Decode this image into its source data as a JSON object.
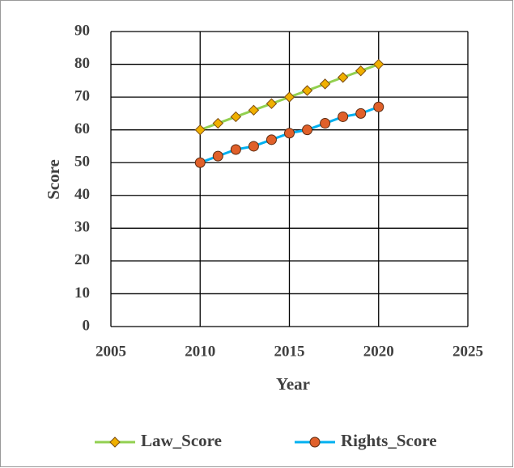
{
  "chart_data": {
    "type": "line",
    "x_label": "Year",
    "y_label": "Score",
    "x": [
      2010,
      2011,
      2012,
      2013,
      2014,
      2015,
      2016,
      2017,
      2018,
      2019,
      2020
    ],
    "series": [
      {
        "name": "Law_Score",
        "color": "#92d050",
        "marker_color": "#f0b000",
        "marker": "diamond",
        "values": [
          60,
          62,
          64,
          66,
          68,
          70,
          72,
          74,
          76,
          78,
          80
        ]
      },
      {
        "name": "Rights_Score",
        "color": "#00b0f0",
        "marker_color": "#e0602a",
        "marker": "circle",
        "values": [
          50,
          52,
          54,
          55,
          57,
          59,
          60,
          62,
          64,
          65,
          67
        ]
      }
    ],
    "xlim": [
      2005,
      2025
    ],
    "xticks": [
      2005,
      2010,
      2015,
      2020,
      2025
    ],
    "ylim": [
      0,
      90
    ],
    "yticks": [
      0,
      10,
      20,
      30,
      40,
      50,
      60,
      70,
      80,
      90
    ],
    "grid": true,
    "legend": "bottom"
  }
}
